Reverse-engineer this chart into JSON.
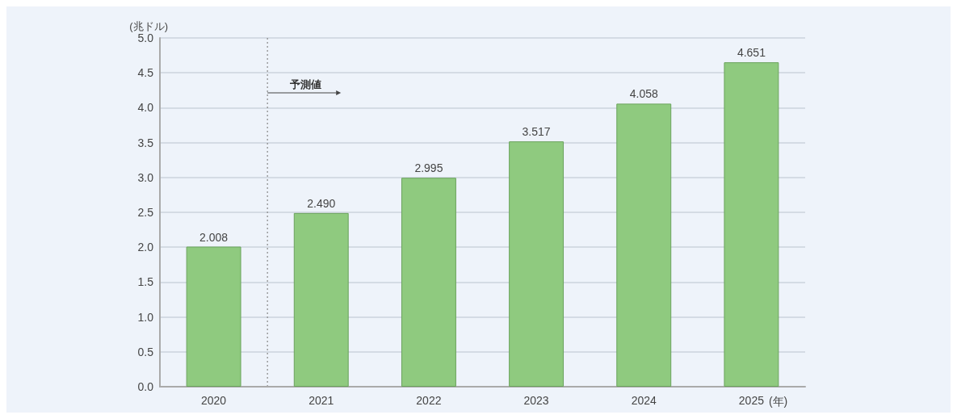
{
  "chart_data": {
    "type": "bar",
    "ylabel": "(兆ドル)",
    "xlabel": "(年)",
    "categories": [
      "2020",
      "2021",
      "2022",
      "2023",
      "2024",
      "2025"
    ],
    "values": [
      2.008,
      2.49,
      2.995,
      3.517,
      4.058,
      4.651
    ],
    "value_labels": [
      "2.008",
      "2.490",
      "2.995",
      "3.517",
      "4.058",
      "4.651"
    ],
    "color": "#8fca7f",
    "ylim": [
      0,
      5
    ],
    "yticks": [
      "0.0",
      "0.5",
      "1.0",
      "1.5",
      "2.0",
      "2.5",
      "3.0",
      "3.5",
      "4.0",
      "4.5",
      "5.0"
    ],
    "grid": "y",
    "annotations": [
      "予測値"
    ]
  }
}
